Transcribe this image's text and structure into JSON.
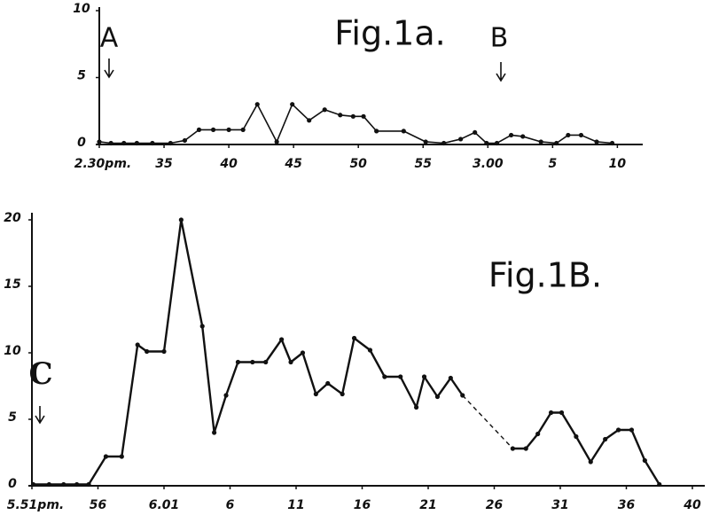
{
  "chart_data": [
    {
      "type": "line",
      "title": "Fig.1a.",
      "annotations": [
        "A",
        "B"
      ],
      "x": [
        0,
        0.9,
        1.9,
        2.9,
        4.1,
        5.5,
        6.6,
        7.7,
        8.8,
        10,
        11.1,
        12.2,
        13.7,
        14.9,
        16.2,
        17.4,
        18.6,
        19.6,
        20.4,
        21.4,
        23.5,
        25.2,
        26.6,
        27.9,
        29,
        29.9,
        30.7,
        31.8,
        32.7,
        34.1,
        35.3,
        36.2,
        37.2,
        38.4,
        39.6
      ],
      "values": [
        0.2,
        0.1,
        0.1,
        0.1,
        0.1,
        0.1,
        0.3,
        1.1,
        1.1,
        1.1,
        1.1,
        3,
        0.2,
        3,
        1.8,
        2.6,
        2.2,
        2.1,
        2.1,
        1,
        1,
        0.2,
        0.1,
        0.4,
        0.9,
        0.1,
        0.1,
        0.7,
        0.6,
        0.2,
        0.1,
        0.7,
        0.7,
        0.2,
        0.1
      ],
      "color": "#111111",
      "xlim": [
        0,
        41
      ],
      "ylim": [
        0,
        10
      ],
      "xticks": [
        {
          "value": 0,
          "label": "2.30pm."
        },
        {
          "value": 5,
          "label": "35"
        },
        {
          "value": 10,
          "label": "40"
        },
        {
          "value": 15,
          "label": "45"
        },
        {
          "value": 20,
          "label": "50"
        },
        {
          "value": 25,
          "label": "55"
        },
        {
          "value": 30,
          "label": "3.00"
        },
        {
          "value": 35,
          "label": "5"
        },
        {
          "value": 40,
          "label": "10"
        }
      ],
      "yticks": [
        0,
        5,
        10
      ]
    },
    {
      "type": "line",
      "title": "Fig.1B.",
      "annotations": [
        "C"
      ],
      "x": [
        0.1,
        1.3,
        2.4,
        3.4,
        4.3,
        5.6,
        6.8,
        8,
        8.7,
        10,
        11.3,
        12.9,
        13.8,
        14.7,
        15.6,
        16.7,
        17.7,
        18.9,
        19.6,
        20.5,
        21.5,
        22.4,
        23.5,
        24.4,
        25.6,
        26.7,
        27.9,
        29.1,
        29.7,
        30.7,
        31.7,
        32.6,
        36.4,
        37.4,
        38.3,
        39.3,
        40.1,
        41.2,
        42.3,
        43.4,
        44.4,
        45.4,
        46.4,
        47.5
      ],
      "values": [
        0.1,
        0.1,
        0.1,
        0.1,
        0.1,
        2.2,
        2.2,
        10.6,
        10.1,
        10.1,
        20,
        12,
        4,
        6.8,
        9.3,
        9.3,
        9.3,
        11,
        9.3,
        10,
        6.9,
        7.7,
        6.9,
        11.1,
        10.2,
        8.2,
        8.2,
        5.9,
        8.2,
        6.7,
        8.1,
        6.8,
        2.8,
        2.8,
        3.9,
        5.5,
        5.5,
        3.7,
        1.8,
        3.5,
        4.2,
        4.2,
        1.9,
        0.1
      ],
      "color": "#111111",
      "dashed_segments": [
        31
      ],
      "xlim": [
        0,
        50
      ],
      "ylim": [
        0,
        20
      ],
      "xticks": [
        {
          "value": 0,
          "label": "5.51pm."
        },
        {
          "value": 5,
          "label": "56"
        },
        {
          "value": 10,
          "label": "6.01"
        },
        {
          "value": 15,
          "label": "6"
        },
        {
          "value": 20,
          "label": "11"
        },
        {
          "value": 25,
          "label": "16"
        },
        {
          "value": 30,
          "label": "21"
        },
        {
          "value": 35,
          "label": "26"
        },
        {
          "value": 40,
          "label": "31"
        },
        {
          "value": 45,
          "label": "36"
        },
        {
          "value": 50,
          "label": "40"
        }
      ],
      "yticks": [
        0,
        5,
        10,
        15,
        20
      ]
    }
  ]
}
